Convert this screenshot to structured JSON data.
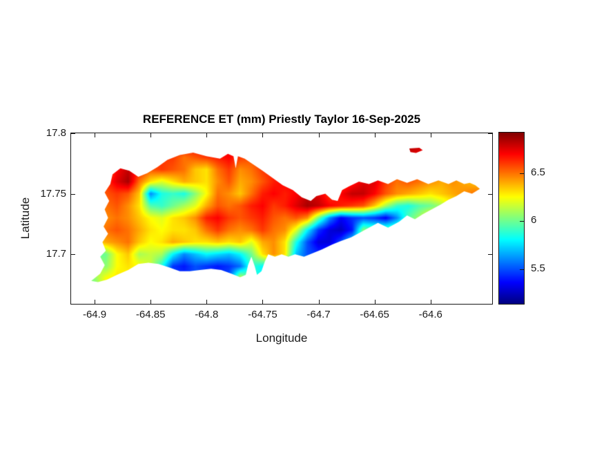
{
  "figure": {
    "background": "#ffffff",
    "axis_color": "#151515",
    "tick_label_color": "#1a1a1a"
  },
  "chart_data": {
    "type": "heatmap",
    "title": "REFERENCE ET (mm) Priestly Taylor 16-Sep-2025",
    "xlabel": "Longitude",
    "ylabel": "Latitude",
    "xlim": [
      -64.921,
      -64.545
    ],
    "ylim": [
      17.659,
      17.8
    ],
    "xticks": [
      -64.9,
      -64.85,
      -64.8,
      -64.75,
      -64.7,
      -64.65,
      -64.6
    ],
    "xtick_labels": [
      "-64.9",
      "-64.85",
      "-64.8",
      "-64.75",
      "-64.7",
      "-64.65",
      "-64.6"
    ],
    "yticks": [
      17.8,
      17.75,
      17.7
    ],
    "ytick_labels": [
      "17.8",
      "17.75",
      "17.7"
    ],
    "grid_lines": false,
    "colorbar": {
      "colormap": "jet",
      "clim": [
        5.14,
        6.92
      ],
      "ticks": [
        6.5,
        6.0,
        5.5
      ],
      "tick_labels": [
        "6.5",
        "6",
        "5.5"
      ],
      "position": "right"
    },
    "colormap_stops": [
      [
        0.0,
        "#000080"
      ],
      [
        0.125,
        "#0000ff"
      ],
      [
        0.375,
        "#00ffff"
      ],
      [
        0.625,
        "#ffff00"
      ],
      [
        0.875,
        "#ff0000"
      ],
      [
        1.0,
        "#800000"
      ]
    ],
    "grid": {
      "lon0": -64.92,
      "dlon": 0.01,
      "ncols": 38,
      "lat0": 17.8,
      "dlat": -0.01,
      "nrows": 15,
      "values": [
        [
          6.7,
          6.7,
          6.7,
          6.7,
          6.7,
          6.7,
          6.7,
          6.7,
          6.7,
          6.7,
          6.7,
          6.7,
          6.7,
          6.7,
          6.7,
          6.7,
          6.7,
          6.7,
          6.7,
          6.7,
          6.7,
          6.7,
          6.7,
          6.7,
          6.7,
          6.7,
          6.7,
          6.7,
          6.7,
          6.7,
          6.7,
          6.7,
          6.7,
          6.7,
          6.7,
          6.7,
          6.7,
          6.7
        ],
        [
          6.7,
          6.7,
          6.7,
          6.7,
          6.7,
          6.7,
          6.7,
          6.7,
          6.7,
          6.7,
          6.7,
          6.7,
          6.7,
          6.7,
          6.7,
          6.7,
          6.7,
          6.7,
          6.7,
          6.7,
          6.7,
          6.7,
          6.7,
          6.7,
          6.7,
          6.7,
          6.7,
          6.7,
          6.7,
          6.7,
          6.85,
          6.8,
          6.7,
          6.7,
          6.7,
          6.7,
          6.7,
          6.7
        ],
        [
          6.6,
          6.6,
          6.6,
          6.6,
          6.6,
          6.6,
          6.6,
          6.6,
          6.6,
          6.6,
          6.5,
          6.55,
          6.6,
          6.65,
          6.7,
          6.6,
          6.55,
          6.6,
          6.6,
          6.6,
          6.6,
          6.6,
          6.6,
          6.6,
          6.6,
          6.6,
          6.6,
          6.6,
          6.6,
          6.6,
          6.75,
          6.7,
          6.6,
          6.6,
          6.6,
          6.6,
          6.6,
          6.6
        ],
        [
          6.5,
          6.5,
          6.5,
          6.45,
          6.7,
          6.8,
          6.65,
          6.55,
          6.6,
          6.55,
          6.5,
          6.35,
          6.3,
          6.5,
          6.6,
          6.45,
          6.5,
          6.6,
          6.65,
          6.6,
          6.55,
          6.6,
          6.6,
          6.6,
          6.6,
          6.65,
          6.65,
          6.6,
          6.6,
          6.55,
          6.6,
          6.55,
          6.5,
          6.5,
          6.5,
          6.5,
          6.45,
          6.45
        ],
        [
          6.5,
          6.5,
          6.5,
          6.6,
          6.75,
          6.85,
          6.5,
          6.3,
          6.2,
          6.3,
          6.4,
          6.35,
          6.3,
          6.45,
          6.55,
          6.4,
          6.45,
          6.55,
          6.65,
          6.7,
          6.7,
          6.75,
          6.7,
          6.6,
          6.55,
          6.65,
          6.75,
          6.75,
          6.6,
          6.5,
          6.55,
          6.5,
          6.45,
          6.4,
          6.45,
          6.4,
          6.35,
          6.35
        ],
        [
          6.45,
          6.45,
          6.45,
          6.55,
          6.6,
          6.55,
          6.35,
          5.6,
          5.85,
          5.9,
          5.85,
          6.05,
          6.25,
          6.5,
          6.45,
          6.35,
          6.5,
          6.65,
          6.7,
          6.65,
          6.7,
          6.8,
          6.75,
          6.6,
          6.7,
          6.8,
          6.8,
          6.7,
          6.55,
          6.45,
          6.4,
          6.35,
          6.3,
          6.35,
          6.4,
          6.45,
          6.5,
          6.5
        ],
        [
          6.4,
          6.4,
          6.4,
          6.5,
          6.55,
          6.45,
          6.3,
          5.95,
          5.9,
          6.0,
          6.1,
          6.2,
          6.4,
          6.55,
          6.5,
          6.55,
          6.65,
          6.7,
          6.6,
          6.65,
          6.75,
          6.85,
          6.8,
          6.7,
          6.65,
          6.6,
          6.55,
          6.35,
          6.1,
          5.9,
          5.85,
          5.95,
          6.0,
          6.1,
          6.25,
          6.35,
          6.4,
          6.4
        ],
        [
          6.35,
          6.35,
          6.35,
          6.45,
          6.5,
          6.45,
          6.35,
          6.25,
          6.2,
          6.3,
          6.35,
          6.45,
          6.65,
          6.7,
          6.6,
          6.55,
          6.6,
          6.65,
          6.55,
          6.5,
          6.55,
          6.45,
          6.0,
          5.6,
          5.35,
          5.45,
          5.5,
          5.45,
          5.35,
          5.6,
          5.95,
          6.1,
          6.3,
          6.3,
          6.3,
          6.3,
          6.35,
          6.35
        ],
        [
          6.4,
          6.4,
          6.4,
          6.5,
          6.55,
          6.5,
          6.4,
          6.3,
          6.25,
          6.3,
          6.3,
          6.35,
          6.5,
          6.6,
          6.5,
          6.45,
          6.5,
          6.6,
          6.5,
          6.45,
          6.2,
          5.8,
          5.45,
          5.3,
          5.25,
          5.4,
          6.05,
          6.0,
          6.0,
          6.0,
          6.1,
          6.2,
          6.3,
          6.3,
          6.3,
          6.3,
          6.3,
          6.3
        ],
        [
          6.3,
          6.3,
          6.3,
          6.4,
          6.45,
          6.5,
          6.35,
          6.25,
          6.3,
          6.4,
          6.35,
          6.3,
          6.3,
          6.35,
          6.3,
          6.35,
          6.2,
          6.4,
          6.45,
          6.3,
          5.85,
          5.5,
          5.3,
          5.3,
          5.5,
          5.8,
          6.0,
          6.0,
          6.0,
          6.0,
          6.0,
          6.0,
          6.0,
          6.0,
          6.0,
          6.0,
          6.0,
          6.0
        ],
        [
          6.0,
          6.0,
          5.95,
          6.0,
          6.25,
          6.35,
          6.1,
          6.15,
          6.1,
          5.8,
          5.6,
          5.7,
          5.8,
          5.75,
          5.7,
          5.8,
          6.0,
          6.3,
          6.45,
          6.3,
          5.7,
          5.5,
          5.45,
          5.5,
          5.6,
          5.8,
          5.9,
          5.9,
          5.9,
          5.9,
          5.9,
          5.9,
          5.9,
          5.9,
          5.9,
          5.9,
          5.9,
          5.9
        ],
        [
          6.1,
          6.1,
          6.2,
          6.05,
          6.25,
          6.3,
          6.25,
          6.15,
          5.85,
          5.45,
          5.4,
          5.5,
          5.45,
          5.4,
          5.45,
          5.55,
          5.9,
          5.8,
          5.9,
          5.8,
          5.7,
          5.6,
          5.6,
          5.6,
          5.6,
          5.7,
          5.8,
          5.8,
          5.8,
          5.8,
          5.8,
          5.8,
          5.8,
          5.8,
          5.8,
          5.8,
          5.8,
          5.8
        ],
        [
          5.95,
          6.05,
          6.05,
          6.25,
          6.3,
          6.25,
          6.2,
          6.0,
          5.7,
          5.5,
          5.45,
          5.5,
          5.5,
          5.45,
          5.5,
          6.2,
          5.9,
          5.8,
          5.7,
          5.7,
          5.7,
          5.7,
          5.7,
          5.7,
          5.7,
          5.7,
          5.7,
          5.7,
          5.7,
          5.7,
          5.7,
          5.7,
          5.7,
          5.7,
          5.7,
          5.7,
          5.7,
          5.7
        ],
        [
          5.9,
          6.0,
          6.0,
          6.2,
          6.15,
          6.1,
          6.05,
          6.0,
          5.8,
          5.6,
          5.6,
          5.6,
          5.6,
          5.6,
          5.6,
          5.9,
          5.8,
          5.8,
          5.8,
          5.8,
          5.8,
          5.8,
          5.8,
          5.8,
          5.8,
          5.8,
          5.8,
          5.8,
          5.8,
          5.8,
          5.8,
          5.8,
          5.8,
          5.8,
          5.8,
          5.8,
          5.8,
          5.8
        ],
        [
          5.9,
          5.9,
          5.9,
          5.9,
          5.9,
          5.9,
          5.9,
          5.9,
          5.9,
          5.9,
          5.9,
          5.9,
          5.9,
          5.9,
          5.9,
          5.9,
          5.9,
          5.9,
          5.9,
          5.9,
          5.9,
          5.9,
          5.9,
          5.9,
          5.9,
          5.9,
          5.9,
          5.9,
          5.9,
          5.9,
          5.9,
          5.9,
          5.9,
          5.9,
          5.9,
          5.9,
          5.9,
          5.9
        ]
      ]
    },
    "island_outline": [
      [
        -64.903,
        17.678
      ],
      [
        -64.895,
        17.684
      ],
      [
        -64.891,
        17.691
      ],
      [
        -64.895,
        17.698
      ],
      [
        -64.89,
        17.703
      ],
      [
        -64.893,
        17.71
      ],
      [
        -64.888,
        17.717
      ],
      [
        -64.892,
        17.723
      ],
      [
        -64.888,
        17.73
      ],
      [
        -64.891,
        17.737
      ],
      [
        -64.887,
        17.744
      ],
      [
        -64.891,
        17.751
      ],
      [
        -64.886,
        17.758
      ],
      [
        -64.884,
        17.766
      ],
      [
        -64.877,
        17.771
      ],
      [
        -64.869,
        17.769
      ],
      [
        -64.861,
        17.764
      ],
      [
        -64.853,
        17.767
      ],
      [
        -64.844,
        17.772
      ],
      [
        -64.835,
        17.778
      ],
      [
        -64.824,
        17.782
      ],
      [
        -64.812,
        17.784
      ],
      [
        -64.8,
        17.781
      ],
      [
        -64.788,
        17.779
      ],
      [
        -64.781,
        17.783
      ],
      [
        -64.776,
        17.781
      ],
      [
        -64.774,
        17.771
      ],
      [
        -64.772,
        17.781
      ],
      [
        -64.766,
        17.779
      ],
      [
        -64.758,
        17.774
      ],
      [
        -64.75,
        17.769
      ],
      [
        -64.741,
        17.763
      ],
      [
        -64.732,
        17.757
      ],
      [
        -64.723,
        17.753
      ],
      [
        -64.715,
        17.747
      ],
      [
        -64.707,
        17.744
      ],
      [
        -64.702,
        17.748
      ],
      [
        -64.694,
        17.75
      ],
      [
        -64.688,
        17.745
      ],
      [
        -64.683,
        17.744
      ],
      [
        -64.679,
        17.753
      ],
      [
        -64.673,
        17.756
      ],
      [
        -64.664,
        17.76
      ],
      [
        -64.655,
        17.758
      ],
      [
        -64.647,
        17.761
      ],
      [
        -64.638,
        17.758
      ],
      [
        -64.63,
        17.762
      ],
      [
        -64.621,
        17.759
      ],
      [
        -64.612,
        17.762
      ],
      [
        -64.602,
        17.758
      ],
      [
        -64.593,
        17.761
      ],
      [
        -64.584,
        17.758
      ],
      [
        -64.577,
        17.761
      ],
      [
        -64.57,
        17.758
      ],
      [
        -64.565,
        17.759
      ],
      [
        -64.56,
        17.757
      ],
      [
        -64.556,
        17.754
      ],
      [
        -64.563,
        17.75
      ],
      [
        -64.57,
        17.752
      ],
      [
        -64.577,
        17.748
      ],
      [
        -64.584,
        17.745
      ],
      [
        -64.591,
        17.741
      ],
      [
        -64.599,
        17.737
      ],
      [
        -64.607,
        17.733
      ],
      [
        -64.614,
        17.729
      ],
      [
        -64.621,
        17.732
      ],
      [
        -64.628,
        17.727
      ],
      [
        -64.638,
        17.722
      ],
      [
        -64.647,
        17.726
      ],
      [
        -64.655,
        17.722
      ],
      [
        -64.663,
        17.718
      ],
      [
        -64.671,
        17.714
      ],
      [
        -64.68,
        17.711
      ],
      [
        -64.688,
        17.708
      ],
      [
        -64.697,
        17.704
      ],
      [
        -64.705,
        17.701
      ],
      [
        -64.713,
        17.698
      ],
      [
        -64.721,
        17.7
      ],
      [
        -64.727,
        17.698
      ],
      [
        -64.733,
        17.7
      ],
      [
        -64.739,
        17.698
      ],
      [
        -64.745,
        17.7
      ],
      [
        -64.748,
        17.694
      ],
      [
        -64.751,
        17.686
      ],
      [
        -64.755,
        17.683
      ],
      [
        -64.757,
        17.69
      ],
      [
        -64.76,
        17.698
      ],
      [
        -64.763,
        17.691
      ],
      [
        -64.765,
        17.683
      ],
      [
        -64.77,
        17.681
      ],
      [
        -64.778,
        17.684
      ],
      [
        -64.787,
        17.687
      ],
      [
        -64.796,
        17.688
      ],
      [
        -64.806,
        17.687
      ],
      [
        -64.815,
        17.686
      ],
      [
        -64.824,
        17.686
      ],
      [
        -64.833,
        17.689
      ],
      [
        -64.843,
        17.692
      ],
      [
        -64.852,
        17.693
      ],
      [
        -64.861,
        17.692
      ],
      [
        -64.87,
        17.687
      ],
      [
        -64.88,
        17.683
      ],
      [
        -64.889,
        17.679
      ],
      [
        -64.897,
        17.677
      ]
    ],
    "islets": [
      [
        [
          -64.619,
          17.7875
        ],
        [
          -64.61,
          17.788
        ],
        [
          -64.607,
          17.786
        ],
        [
          -64.613,
          17.7838
        ],
        [
          -64.618,
          17.7845
        ]
      ]
    ]
  }
}
